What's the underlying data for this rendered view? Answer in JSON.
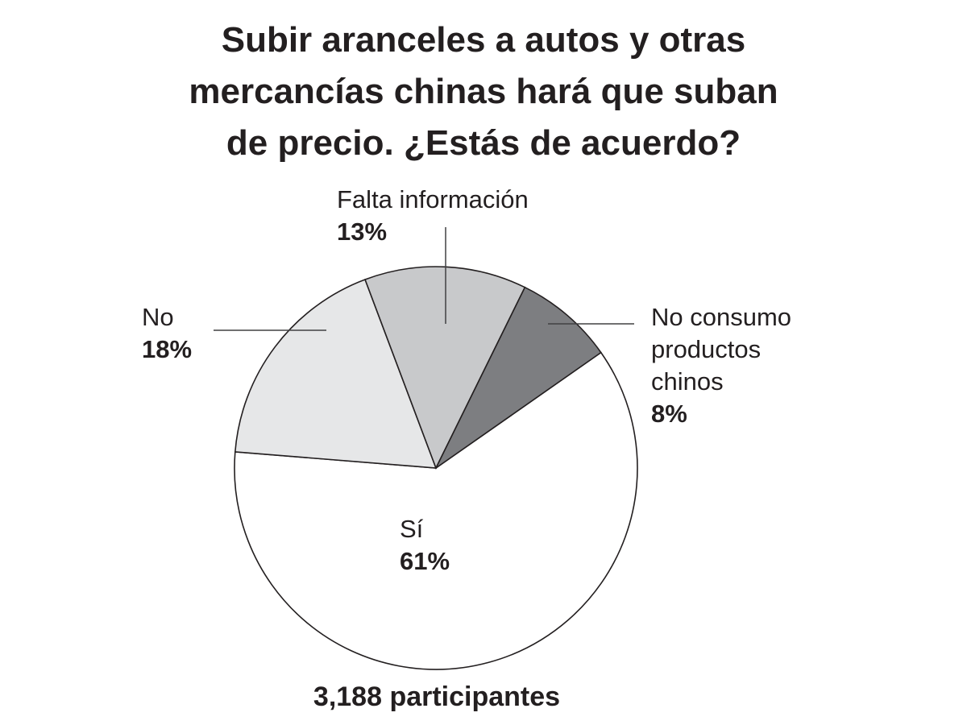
{
  "chart_data": {
    "type": "pie",
    "title_lines": [
      "Subir aranceles a autos y otras",
      "mercancías chinas hará que suban",
      "de precio. ¿Estás de acuerdo?"
    ],
    "slices": [
      {
        "label": "Sí",
        "value": 61,
        "display": "61%",
        "color": "#ffffff"
      },
      {
        "label": "No",
        "value": 18,
        "display": "18%",
        "color": "#e6e7e8"
      },
      {
        "label": "Falta información",
        "value": 13,
        "display": "13%",
        "color": "#c8c9cb"
      },
      {
        "label": "No consumo productos chinos",
        "label_lines": [
          "No consumo",
          "productos",
          "chinos"
        ],
        "value": 8,
        "display": "8%",
        "color": "#7d7e81"
      }
    ],
    "footer": "3,188 participantes"
  }
}
